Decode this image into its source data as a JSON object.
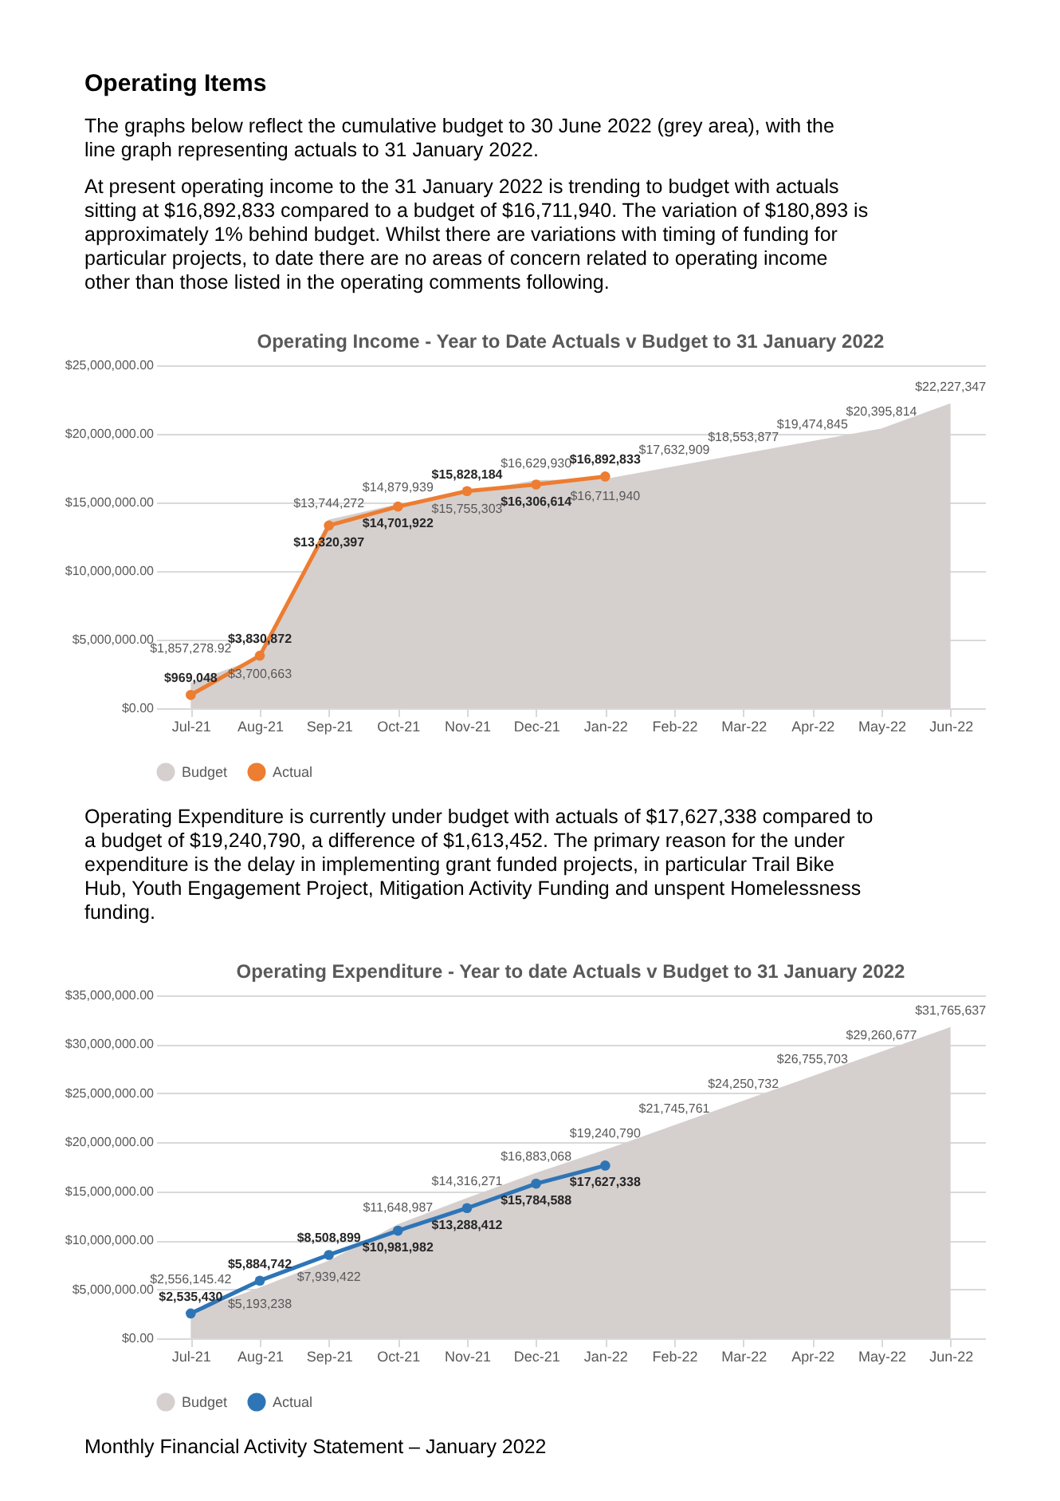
{
  "chart_data": [
    {
      "type": "line",
      "title": "Operating Income - Year to Date Actuals v Budget to 31 January 2022",
      "annotations": [
        "Operating Items",
        "The graphs below reflect the cumulative budget to 30 June 2022 (grey area), with the line graph representing actuals to 31 January 2022.",
        "At present operating income to the 31 January 2022 is trending to budget with actuals sitting at $16,892,833 compared to a budget of $16,711,940. The variation of $180,893 is approximately 1% behind budget. Whilst there are variations with timing of funding for particular projects, to date there are no areas of concern related to operating income other than those listed in the operating comments following."
      ],
      "categories": [
        "Jul-21",
        "Aug-21",
        "Sep-21",
        "Oct-21",
        "Nov-21",
        "Dec-21",
        "Jan-22",
        "Feb-22",
        "Mar-22",
        "Apr-22",
        "May-22",
        "Jun-22"
      ],
      "series": [
        {
          "name": "Budget",
          "type": "area",
          "color": "#d5cfce",
          "values": [
            1857278.92,
            3700663,
            13744272,
            14879939,
            15755303,
            16629930,
            16711940,
            17632909,
            18553877,
            19474845,
            20395814,
            22227347
          ],
          "value_labels": [
            "$1,857,278.92",
            "$3,700,663",
            "$13,744,272",
            "$14,879,939",
            "$15,755,303",
            "$16,629,930",
            "$16,711,940",
            "$17,632,909",
            "$18,553,877",
            "$19,474,845",
            "$20,395,814",
            "$22,227,347"
          ]
        },
        {
          "name": "Actual",
          "type": "line",
          "marker": "circle",
          "color": "#ed7d31",
          "values": [
            969048,
            3830872,
            13320397,
            14701922,
            15828184,
            16306614,
            16892833,
            null,
            null,
            null,
            null,
            null
          ],
          "value_labels": [
            "$969,048",
            "$3,830,872",
            "$13,320,397",
            "$14,701,922",
            "$15,828,184",
            "$16,306,614",
            "$16,892,833",
            null,
            null,
            null,
            null,
            null
          ]
        }
      ],
      "ylim": [
        0,
        25000000
      ],
      "yticks": [
        {
          "value": 0,
          "label": "$0.00"
        },
        {
          "value": 5000000,
          "label": "$5,000,000.00"
        },
        {
          "value": 10000000,
          "label": "$10,000,000.00"
        },
        {
          "value": 15000000,
          "label": "$15,000,000.00"
        },
        {
          "value": 20000000,
          "label": "$20,000,000.00"
        },
        {
          "value": 25000000,
          "label": "$25,000,000.00"
        }
      ],
      "grid": "y",
      "legend": "bottom"
    },
    {
      "type": "line",
      "title": "Operating Expenditure - Year to date Actuals v Budget to 31 January 2022",
      "annotations": [
        "Operating Expenditure is currently under budget with actuals of $17,627,338 compared to a budget of $19,240,790, a difference of $1,613,452. The primary reason for the under expenditure is the delay in implementing grant funded projects, in particular Trail Bike Hub, Youth Engagement Project, Mitigation Activity Funding and unspent Homelessness funding.",
        "Monthly Financial Activity Statement – January 2022"
      ],
      "categories": [
        "Jul-21",
        "Aug-21",
        "Sep-21",
        "Oct-21",
        "Nov-21",
        "Dec-21",
        "Jan-22",
        "Feb-22",
        "Mar-22",
        "Apr-22",
        "May-22",
        "Jun-22"
      ],
      "series": [
        {
          "name": "Budget",
          "type": "area",
          "color": "#d5cfce",
          "values": [
            2556145.42,
            5193238,
            7939422,
            11648987,
            14316271,
            16883068,
            19240790,
            21745761,
            24250732,
            26755703,
            29260677,
            31765637
          ],
          "value_labels": [
            "$2,556,145.42",
            "$5,193,238",
            "$7,939,422",
            "$11,648,987",
            "$14,316,271",
            "$16,883,068",
            "$19,240,790",
            "$21,745,761",
            "$24,250,732",
            "$26,755,703",
            "$29,260,677",
            "$31,765,637"
          ]
        },
        {
          "name": "Actual",
          "type": "line",
          "marker": "circle",
          "color": "#2e75b6",
          "values": [
            2535430,
            5884742,
            8508899,
            10981982,
            13288412,
            15784588,
            17627338,
            null,
            null,
            null,
            null,
            null
          ],
          "value_labels": [
            "$2,535,430",
            "$5,884,742",
            "$8,508,899",
            "$10,981,982",
            "$13,288,412",
            "$15,784,588",
            "$17,627,338",
            null,
            null,
            null,
            null,
            null
          ]
        }
      ],
      "ylim": [
        0,
        35000000
      ],
      "yticks": [
        {
          "value": 0,
          "label": "$0.00"
        },
        {
          "value": 5000000,
          "label": "$5,000,000.00"
        },
        {
          "value": 10000000,
          "label": "$10,000,000.00"
        },
        {
          "value": 15000000,
          "label": "$15,000,000.00"
        },
        {
          "value": 20000000,
          "label": "$20,000,000.00"
        },
        {
          "value": 25000000,
          "label": "$25,000,000.00"
        },
        {
          "value": 30000000,
          "label": "$30,000,000.00"
        },
        {
          "value": 35000000,
          "label": "$35,000,000.00"
        }
      ],
      "grid": "y",
      "legend": "bottom"
    }
  ]
}
